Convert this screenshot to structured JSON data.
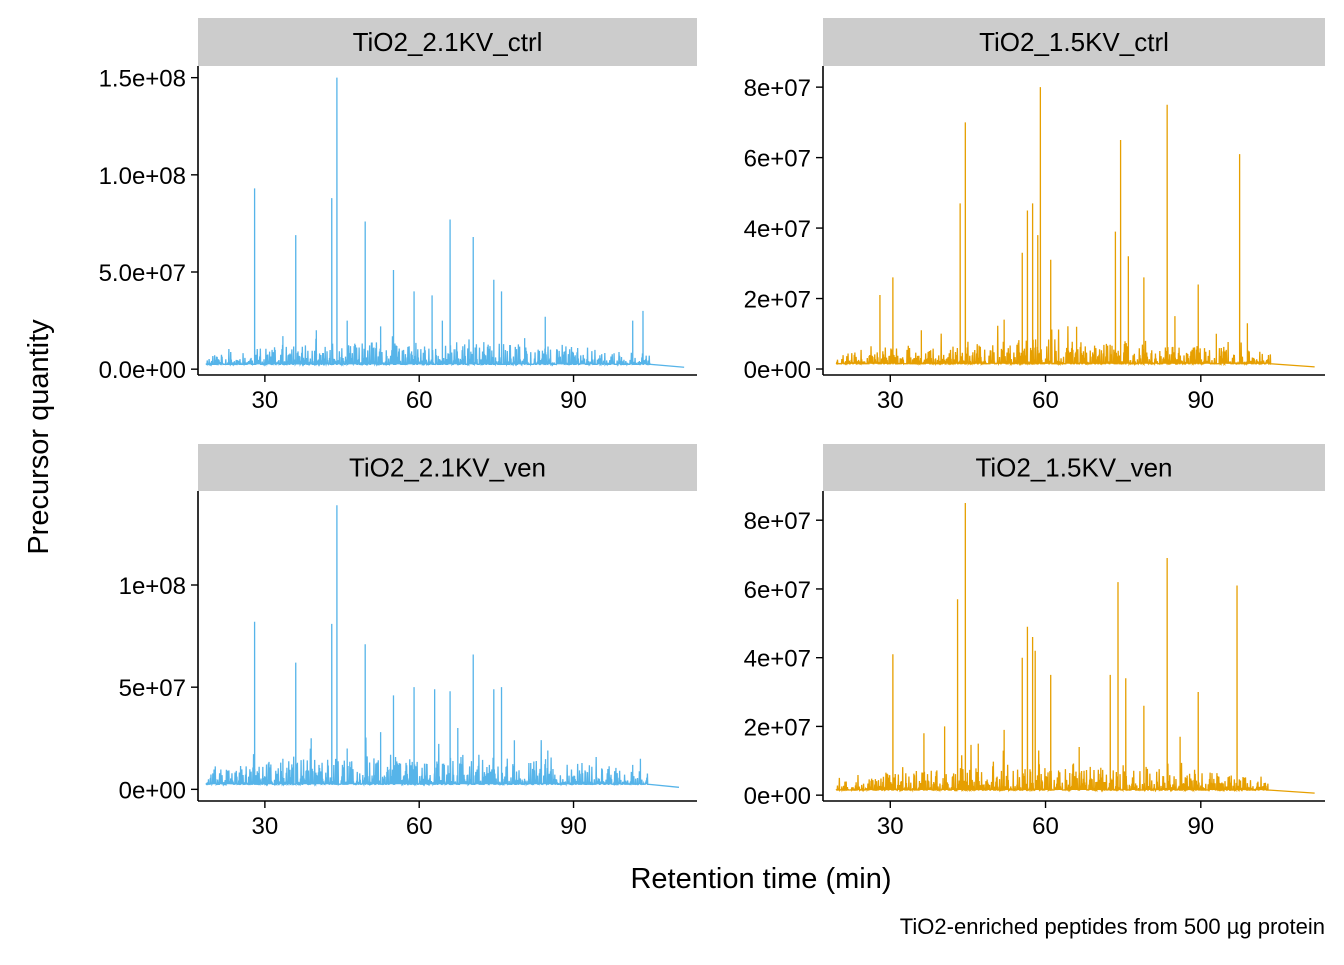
{
  "figure": {
    "ylabel": "Precursor quantity",
    "xlabel": "Retention time (min)",
    "caption": "TiO2-enriched peptides from 500 µg protein"
  },
  "colors": {
    "blue": "#56B4E9",
    "orange": "#E69F00",
    "strip": "#CCCCCC"
  },
  "chart_data": [
    {
      "type": "line",
      "title": "TiO2_2.1KV_ctrl",
      "color": "#56B4E9",
      "xlim": [
        17,
        114
      ],
      "ylim": [
        -3000000,
        156000000
      ],
      "x_ticks": [
        30,
        60,
        90
      ],
      "x_tick_labels": [
        "30",
        "60",
        "90"
      ],
      "y_ticks": [
        0,
        50000000,
        100000000,
        150000000
      ],
      "y_tick_labels": [
        "0.0e+00",
        "5.0e+07",
        "1.0e+08",
        "1.5e+08"
      ],
      "range": [
        18.5,
        104.8,
        111.5
      ],
      "baseline": 2500000,
      "noise_max": 12000000,
      "seed": 11,
      "peaks": [
        [
          28.0,
          93000000
        ],
        [
          36.0,
          69000000
        ],
        [
          43.0,
          88000000
        ],
        [
          44.0,
          150000000
        ],
        [
          49.5,
          76000000
        ],
        [
          55.0,
          51000000
        ],
        [
          59.0,
          40000000
        ],
        [
          62.5,
          38000000
        ],
        [
          66.0,
          77000000
        ],
        [
          70.5,
          68000000
        ],
        [
          74.5,
          46000000
        ],
        [
          76.0,
          40000000
        ],
        [
          84.5,
          27000000
        ],
        [
          101.5,
          25000000
        ],
        [
          103.5,
          30000000
        ],
        [
          33.5,
          17000000
        ],
        [
          40.0,
          20000000
        ],
        [
          46.0,
          25000000
        ],
        [
          52.5,
          22000000
        ],
        [
          64.5,
          25000000
        ],
        [
          80.5,
          16000000
        ]
      ]
    },
    {
      "type": "line",
      "title": "TiO2_1.5KV_ctrl",
      "color": "#E69F00",
      "xlim": [
        17,
        114
      ],
      "ylim": [
        -1700000,
        86000000
      ],
      "x_ticks": [
        30,
        60,
        90
      ],
      "x_tick_labels": [
        "30",
        "60",
        "90"
      ],
      "y_ticks": [
        0,
        20000000,
        40000000,
        60000000,
        80000000
      ],
      "y_tick_labels": [
        "0e+00",
        "2e+07",
        "4e+07",
        "6e+07",
        "8e+07"
      ],
      "range": [
        19.5,
        103.5,
        112.0
      ],
      "baseline": 1500000,
      "noise_max": 7000000,
      "seed": 23,
      "peaks": [
        [
          28.0,
          21000000
        ],
        [
          30.5,
          26000000
        ],
        [
          43.5,
          47000000
        ],
        [
          44.5,
          70000000
        ],
        [
          55.5,
          33000000
        ],
        [
          56.5,
          45000000
        ],
        [
          57.5,
          47000000
        ],
        [
          58.5,
          38000000
        ],
        [
          59.0,
          80000000
        ],
        [
          61.0,
          31000000
        ],
        [
          73.5,
          39000000
        ],
        [
          74.5,
          65000000
        ],
        [
          76.0,
          32000000
        ],
        [
          79.0,
          26000000
        ],
        [
          83.5,
          75000000
        ],
        [
          89.5,
          24000000
        ],
        [
          97.5,
          61000000
        ],
        [
          99.0,
          13000000
        ],
        [
          36.0,
          11000000
        ],
        [
          52.0,
          14000000
        ],
        [
          66.0,
          12000000
        ],
        [
          85.0,
          15000000
        ],
        [
          93.0,
          10000000
        ]
      ]
    },
    {
      "type": "line",
      "title": "TiO2_2.1KV_ven",
      "color": "#56B4E9",
      "xlim": [
        17,
        114
      ],
      "ylim": [
        -5700000,
        146000000
      ],
      "x_ticks": [
        30,
        60,
        90
      ],
      "x_tick_labels": [
        "30",
        "60",
        "90"
      ],
      "y_ticks": [
        0,
        50000000,
        100000000
      ],
      "y_tick_labels": [
        "0e+00",
        "5e+07",
        "1e+08"
      ],
      "range": [
        18.5,
        104.5,
        110.5
      ],
      "baseline": 2500000,
      "noise_max": 15000000,
      "seed": 37,
      "peaks": [
        [
          28.0,
          82000000
        ],
        [
          36.0,
          62000000
        ],
        [
          43.0,
          81000000
        ],
        [
          44.0,
          139000000
        ],
        [
          49.5,
          71000000
        ],
        [
          55.0,
          46000000
        ],
        [
          59.0,
          50000000
        ],
        [
          63.0,
          49000000
        ],
        [
          66.0,
          48000000
        ],
        [
          70.5,
          66000000
        ],
        [
          74.5,
          49000000
        ],
        [
          76.0,
          50000000
        ],
        [
          85.0,
          19000000
        ],
        [
          101.5,
          12000000
        ],
        [
          103.0,
          15000000
        ],
        [
          33.5,
          15000000
        ],
        [
          39.0,
          25000000
        ],
        [
          46.0,
          20000000
        ],
        [
          52.5,
          28000000
        ],
        [
          67.5,
          30000000
        ],
        [
          78.5,
          24000000
        ]
      ]
    },
    {
      "type": "line",
      "title": "TiO2_1.5KV_ven",
      "color": "#E69F00",
      "xlim": [
        17,
        114
      ],
      "ylim": [
        -1700000,
        88500000
      ],
      "x_ticks": [
        30,
        60,
        90
      ],
      "x_tick_labels": [
        "30",
        "60",
        "90"
      ],
      "y_ticks": [
        0,
        20000000,
        40000000,
        60000000,
        80000000
      ],
      "y_tick_labels": [
        "0e+00",
        "2e+07",
        "4e+07",
        "6e+07",
        "8e+07"
      ],
      "range": [
        19.5,
        103.0,
        112.0
      ],
      "baseline": 1500000,
      "noise_max": 8000000,
      "seed": 53,
      "peaks": [
        [
          30.5,
          41000000
        ],
        [
          43.0,
          57000000
        ],
        [
          44.5,
          85000000
        ],
        [
          55.5,
          40000000
        ],
        [
          56.5,
          49000000
        ],
        [
          57.5,
          46000000
        ],
        [
          58.0,
          42000000
        ],
        [
          61.0,
          35000000
        ],
        [
          72.5,
          35000000
        ],
        [
          74.0,
          62000000
        ],
        [
          75.5,
          34000000
        ],
        [
          79.0,
          26000000
        ],
        [
          83.5,
          69000000
        ],
        [
          89.5,
          30000000
        ],
        [
          97.0,
          61000000
        ],
        [
          36.5,
          18000000
        ],
        [
          40.5,
          20000000
        ],
        [
          47.0,
          15000000
        ],
        [
          52.0,
          19000000
        ],
        [
          66.5,
          14000000
        ],
        [
          86.0,
          17000000
        ]
      ]
    }
  ]
}
